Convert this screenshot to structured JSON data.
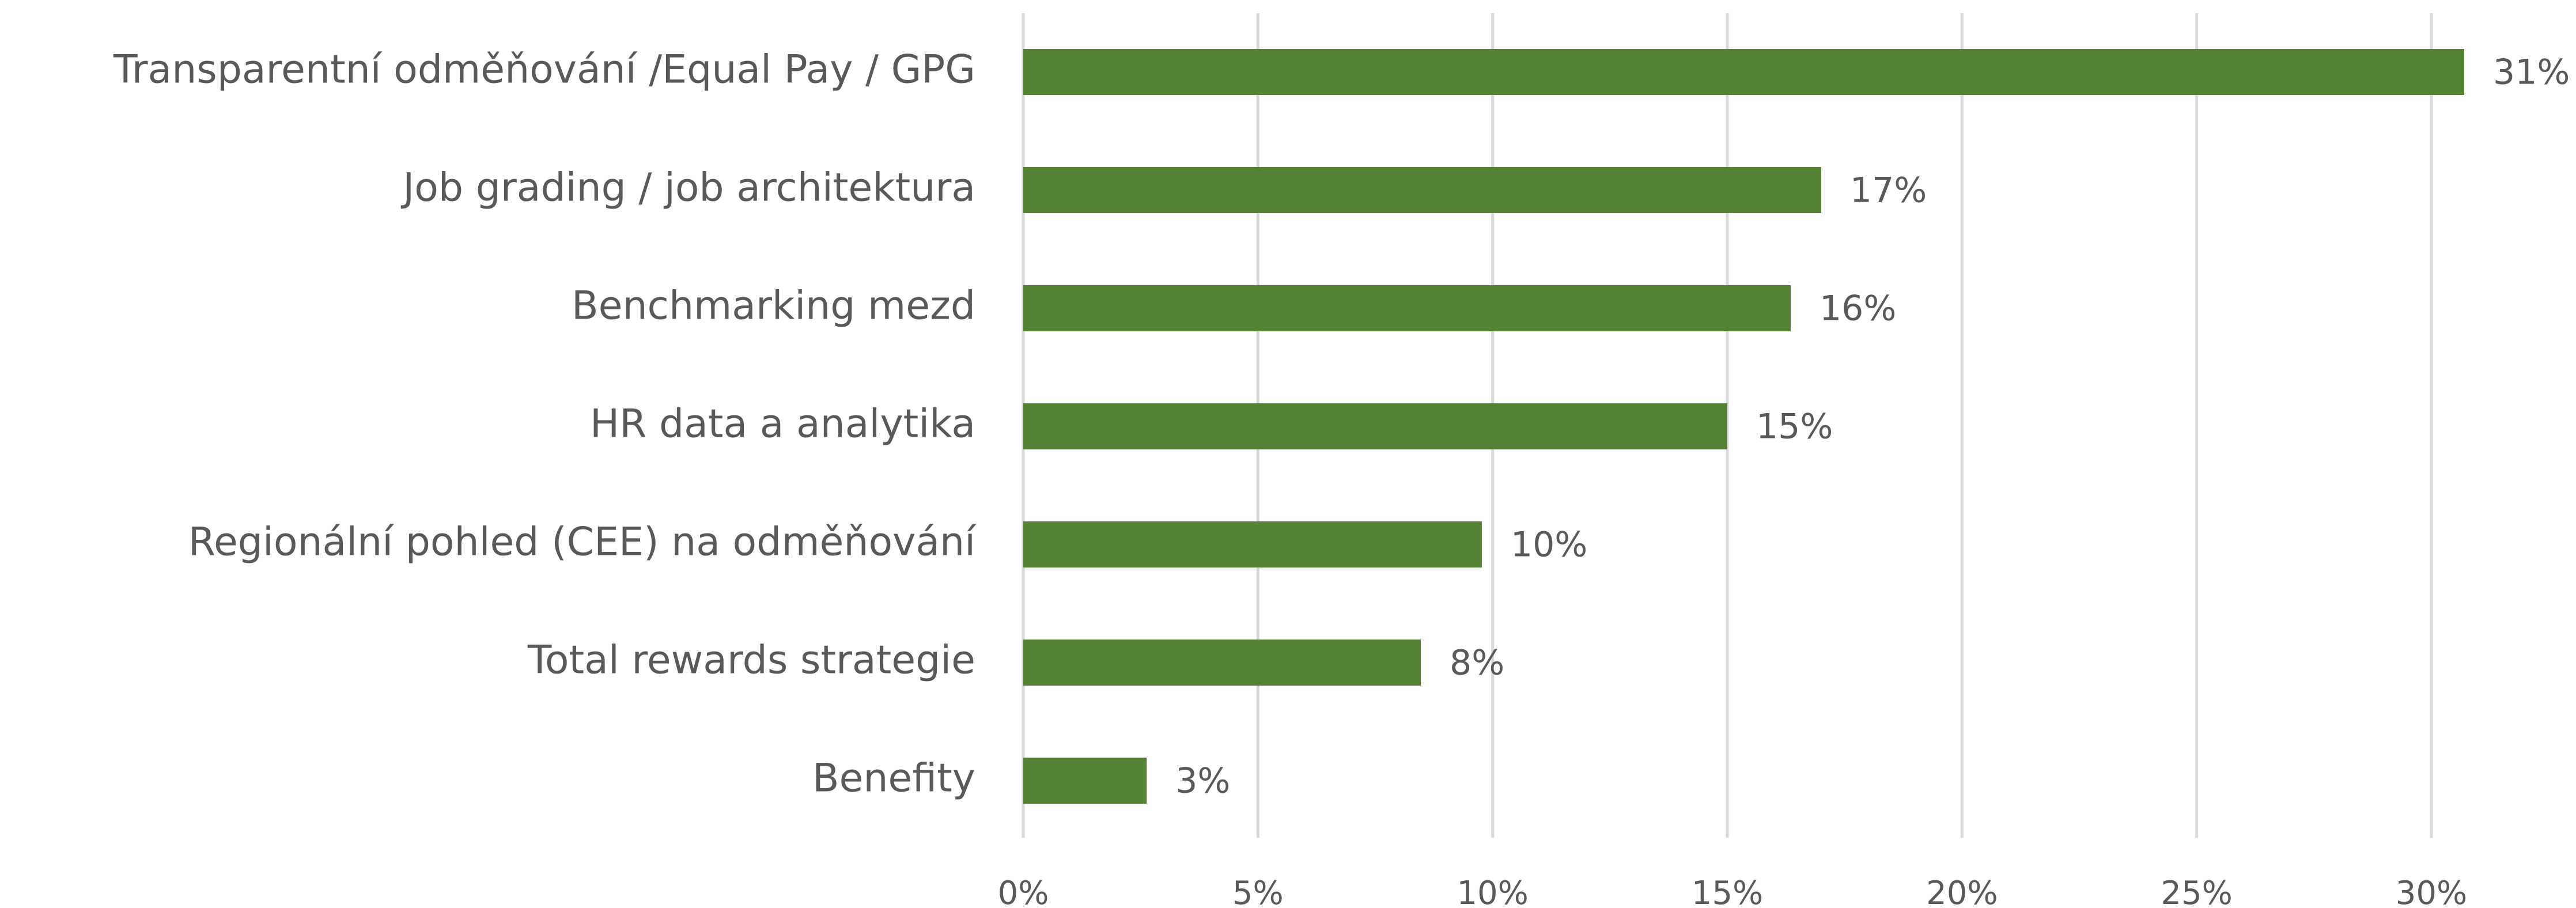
{
  "chart_data": {
    "type": "barh",
    "categories": [
      "Transparentní odměňování /Equal Pay / GPG",
      "Job grading / job architektura",
      "Benchmarking mezd",
      "HR data a analytika",
      "Regionální pohled (CEE) na odměňování",
      "Total rewards strategie",
      "Benefity"
    ],
    "values": [
      30.7,
      17.0,
      16.35,
      15.0,
      9.77,
      8.47,
      2.63
    ],
    "value_labels": [
      "31%",
      "17%",
      "16%",
      "15%",
      "10%",
      "8%",
      "3%"
    ],
    "color": "#548235",
    "xlim": [
      0,
      30
    ],
    "xticks": [
      {
        "value": 0,
        "label": "0%"
      },
      {
        "value": 5,
        "label": "5%"
      },
      {
        "value": 10,
        "label": "10%"
      },
      {
        "value": 15,
        "label": "15%"
      },
      {
        "value": 20,
        "label": "20%"
      },
      {
        "value": 25,
        "label": "25%"
      },
      {
        "value": 30,
        "label": "30%"
      }
    ],
    "grid": true
  }
}
